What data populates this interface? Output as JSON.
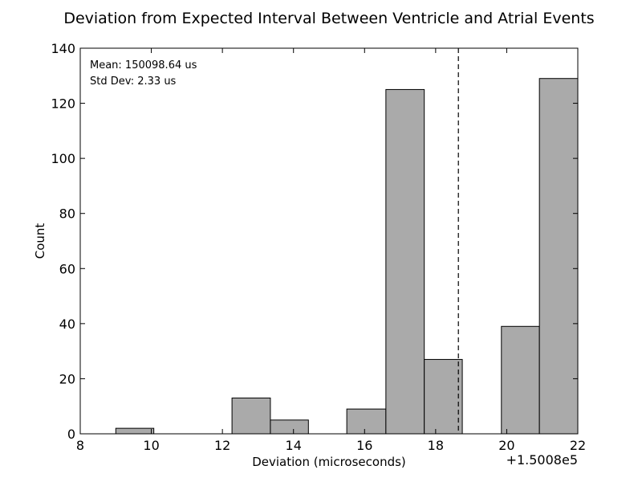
{
  "chart_data": {
    "type": "bar",
    "title": "Deviation from Expected Interval Between Ventricle and Atrial Events",
    "xlabel": "Deviation (microseconds)",
    "ylabel": "Count",
    "x_offset_label": "+1.5008e5",
    "xlim": [
      8,
      22
    ],
    "ylim": [
      0,
      140
    ],
    "x_ticks": [
      8,
      10,
      12,
      14,
      16,
      18,
      20,
      22
    ],
    "y_ticks": [
      0,
      20,
      40,
      60,
      80,
      100,
      120,
      140
    ],
    "bins": [
      {
        "x0": 9.0,
        "x1": 10.07,
        "count": 2
      },
      {
        "x0": 12.27,
        "x1": 13.35,
        "count": 13
      },
      {
        "x0": 13.35,
        "x1": 14.42,
        "count": 5
      },
      {
        "x0": 15.5,
        "x1": 16.6,
        "count": 9
      },
      {
        "x0": 16.6,
        "x1": 17.68,
        "count": 125
      },
      {
        "x0": 17.68,
        "x1": 18.75,
        "count": 27
      },
      {
        "x0": 19.85,
        "x1": 20.92,
        "count": 39
      },
      {
        "x0": 20.92,
        "x1": 22.0,
        "count": 129
      }
    ],
    "mean_line_x": 18.64,
    "annotations": {
      "mean": "Mean: 150098.64 us",
      "std": "Std Dev: 2.33 us"
    },
    "bar_color": "#aaaaaa",
    "edge_color": "#000000",
    "grid": false
  }
}
